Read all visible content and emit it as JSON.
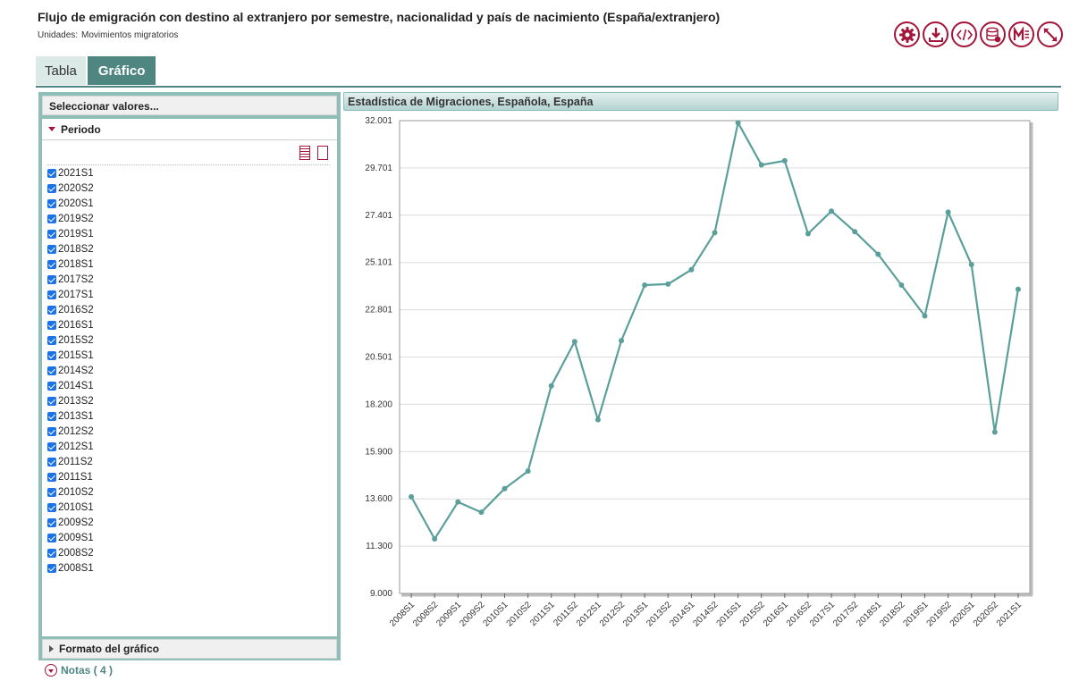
{
  "header": {
    "title": "Flujo de emigración con destino al extranjero por semestre, nacionalidad y país de nacimiento (España/extranjero)",
    "units_label": "Unidades:",
    "units_value": "Movimientos migratorios"
  },
  "toolbar": {
    "icons": [
      "gear-icon",
      "download-icon",
      "embed-code-icon",
      "database-icon",
      "metadata-icon",
      "fullscreen-icon"
    ],
    "accent_color": "#a3163a"
  },
  "tabs": [
    {
      "label": "Tabla",
      "active": false
    },
    {
      "label": "Gráfico",
      "active": true
    }
  ],
  "sidebar": {
    "select_values_label": "Seleccionar valores...",
    "period_label": "Periodo",
    "periods": [
      "2021S1",
      "2020S2",
      "2020S1",
      "2019S2",
      "2019S1",
      "2018S2",
      "2018S1",
      "2017S2",
      "2017S1",
      "2016S2",
      "2016S1",
      "2015S2",
      "2015S1",
      "2014S2",
      "2014S1",
      "2013S2",
      "2013S1",
      "2012S2",
      "2012S1",
      "2011S2",
      "2011S1",
      "2010S2",
      "2010S1",
      "2009S2",
      "2009S1",
      "2008S2",
      "2008S1"
    ],
    "all_checked": true,
    "format_label": "Formato del gráfico"
  },
  "notes": {
    "label": "Notas ( 4 )"
  },
  "chart_header": "Estadística de Migraciones, Española, España",
  "colors": {
    "series": "#5b9f9b",
    "panel": "#8fbdb8",
    "tab_active": "#4f8682"
  },
  "chart_data": {
    "type": "line",
    "title": "",
    "xlabel": "",
    "ylabel": "",
    "x": [
      "2008S1",
      "2008S2",
      "2009S1",
      "2009S2",
      "2010S1",
      "2010S2",
      "2011S1",
      "2011S2",
      "2012S1",
      "2012S2",
      "2013S1",
      "2013S2",
      "2014S1",
      "2014S2",
      "2015S1",
      "2015S2",
      "2016S1",
      "2016S2",
      "2017S1",
      "2017S2",
      "2018S1",
      "2018S2",
      "2019S1",
      "2019S2",
      "2020S1",
      "2020S2",
      "2021S1"
    ],
    "series": [
      {
        "name": "",
        "values": [
          13700,
          11650,
          13450,
          12950,
          14100,
          14950,
          19100,
          21250,
          17450,
          21300,
          24000,
          24050,
          24750,
          26550,
          31900,
          29850,
          30050,
          26500,
          27600,
          26600,
          25500,
          24000,
          22500,
          27550,
          25000,
          16850,
          23800
        ]
      }
    ],
    "ylim": [
      9000,
      32001
    ],
    "y_ticks": [
      "32.001",
      "29.701",
      "27.401",
      "25.101",
      "22.801",
      "20.501",
      "18.200",
      "15.900",
      "13.600",
      "11.300",
      "9.000"
    ],
    "grid": true,
    "legend": "none"
  }
}
